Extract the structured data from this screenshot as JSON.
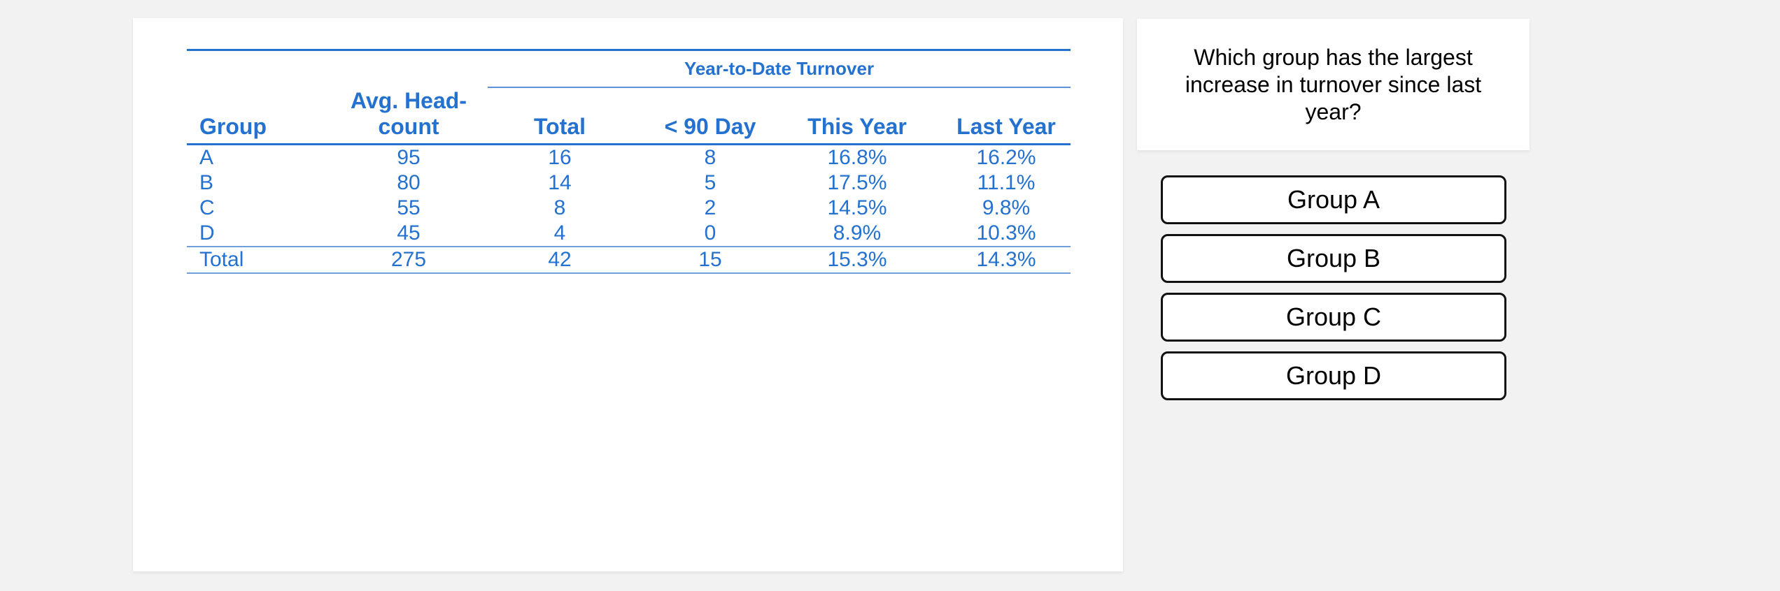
{
  "colors": {
    "page_background": "#f2f2f2",
    "panel_background": "#ffffff",
    "table_accent_blue": "#2471d0",
    "table_thin_rule_blue": "#6fa0dc",
    "button_border": "#111111",
    "question_text": "#000000"
  },
  "table": {
    "title": "Year-to-Date Turnover",
    "headers": [
      "Group",
      "Avg. Head-count",
      "Total",
      "< 90 Day",
      "This Year",
      "Last Year"
    ],
    "rows": [
      [
        "A",
        "95",
        "16",
        "8",
        "16.8%",
        "16.2%"
      ],
      [
        "B",
        "80",
        "14",
        "5",
        "17.5%",
        "11.1%"
      ],
      [
        "C",
        "55",
        "8",
        "2",
        "14.5%",
        "9.8%"
      ],
      [
        "D",
        "45",
        "4",
        "0",
        "8.9%",
        "10.3%"
      ]
    ],
    "total_row": [
      "Total",
      "275",
      "42",
      "15",
      "15.3%",
      "14.3%"
    ]
  },
  "question": {
    "text": "Which group has the largest increase in turnover since last year?"
  },
  "choices": [
    {
      "label": "Group A"
    },
    {
      "label": "Group B"
    },
    {
      "label": "Group C"
    },
    {
      "label": "Group D"
    }
  ]
}
